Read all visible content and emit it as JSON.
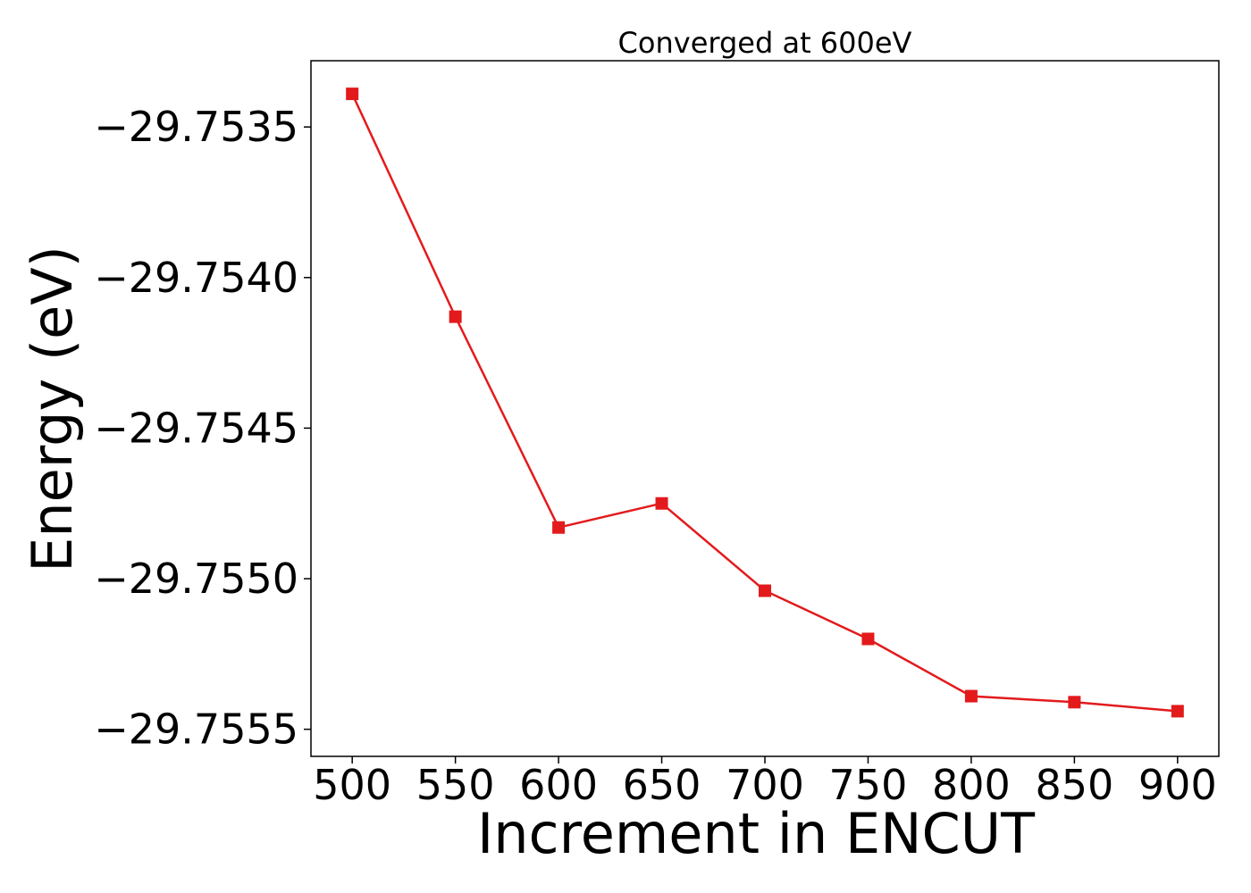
{
  "chart_data": {
    "type": "line",
    "title": "Converged at 600eV",
    "xlabel": "Increment in ENCUT",
    "ylabel": "Energy (eV)",
    "x": [
      500,
      550,
      600,
      650,
      700,
      750,
      800,
      850,
      900
    ],
    "series": [
      {
        "values": [
          -29.75339,
          -29.75413,
          -29.75483,
          -29.75475,
          -29.75504,
          -29.7552,
          -29.75539,
          -29.75541,
          -29.75544
        ],
        "color": "#e31a1c",
        "marker": "square"
      }
    ],
    "xticks": [
      500,
      550,
      600,
      650,
      700,
      750,
      800,
      850,
      900
    ],
    "xtick_labels": [
      "500",
      "550",
      "600",
      "650",
      "700",
      "750",
      "800",
      "850",
      "900"
    ],
    "yticks": [
      -29.7535,
      -29.754,
      -29.7545,
      -29.755,
      -29.7555
    ],
    "ytick_labels": [
      "−29.7535",
      "−29.7540",
      "−29.7545",
      "−29.7550",
      "−29.7555"
    ],
    "xlim": [
      480,
      920
    ],
    "ylim": [
      -29.75559,
      -29.75328
    ],
    "grid": false,
    "legend": "none"
  }
}
